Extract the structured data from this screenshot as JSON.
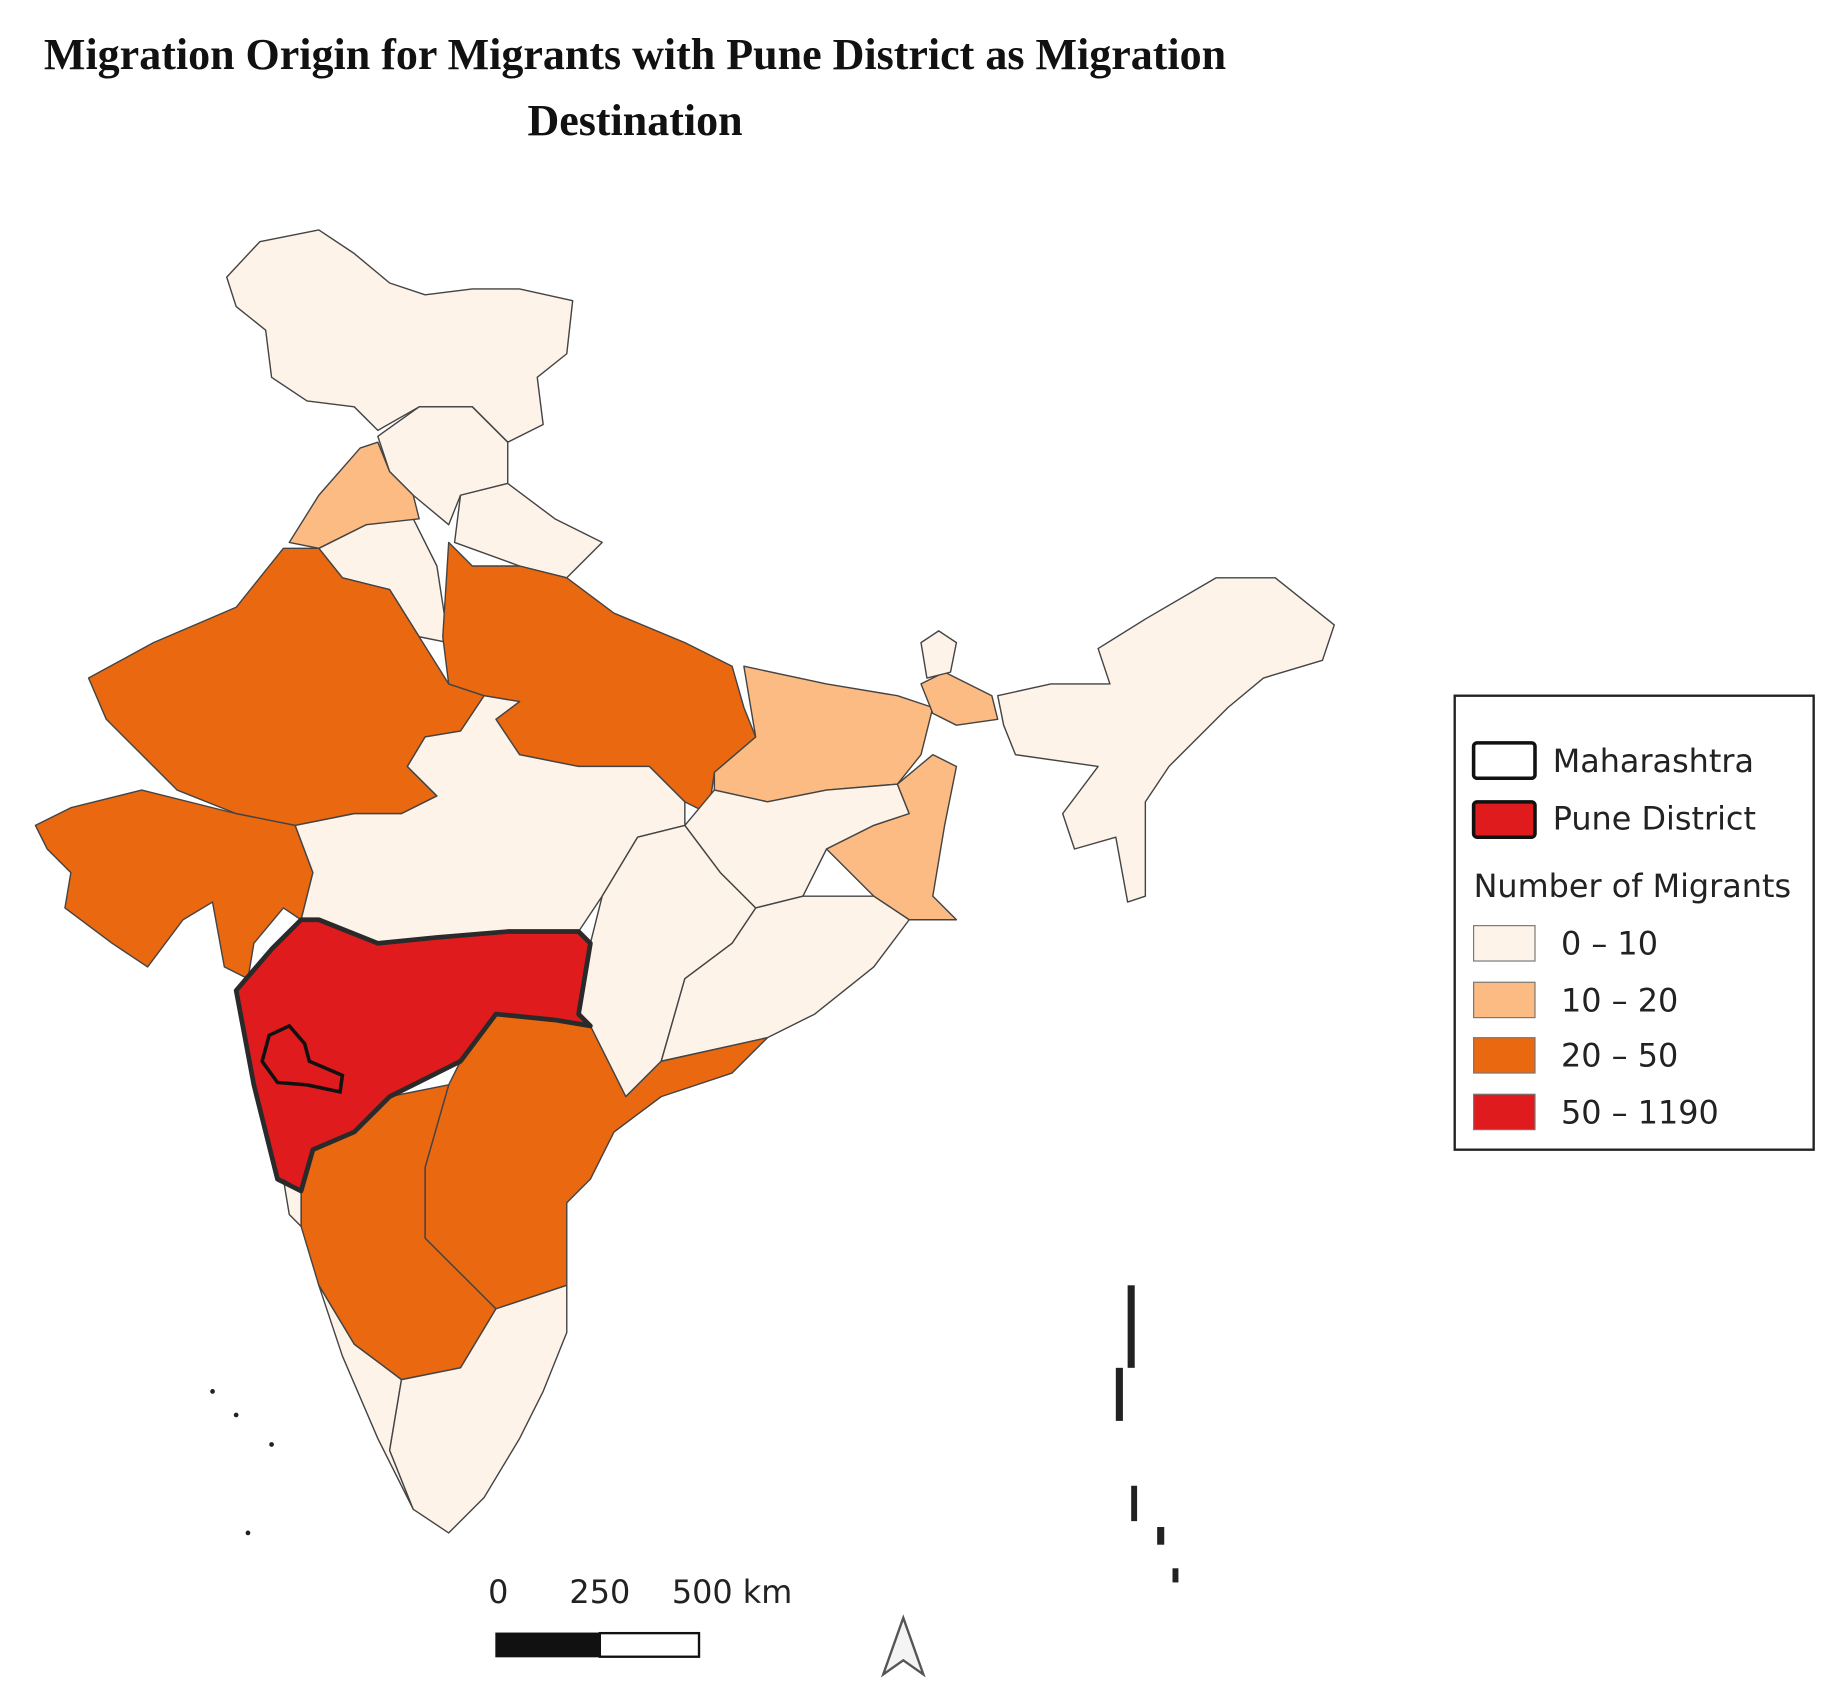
{
  "title": "Migration Origin for Migrants with Pune District as Migration Destination",
  "legend": {
    "outline_items": [
      {
        "label": "Maharashtra"
      },
      {
        "label": "Pune District"
      }
    ],
    "title": "Number of Migrants",
    "classes": [
      {
        "label": "0 – 10",
        "color": "#fdf3e8"
      },
      {
        "label": "10 – 20",
        "color": "#fbbb82"
      },
      {
        "label": "20 – 50",
        "color": "#ea6810"
      },
      {
        "label": "50 – 1190",
        "color": "#e01b1e"
      }
    ]
  },
  "scale_bar": {
    "labels": [
      "0",
      "250",
      "500 km"
    ]
  }
}
